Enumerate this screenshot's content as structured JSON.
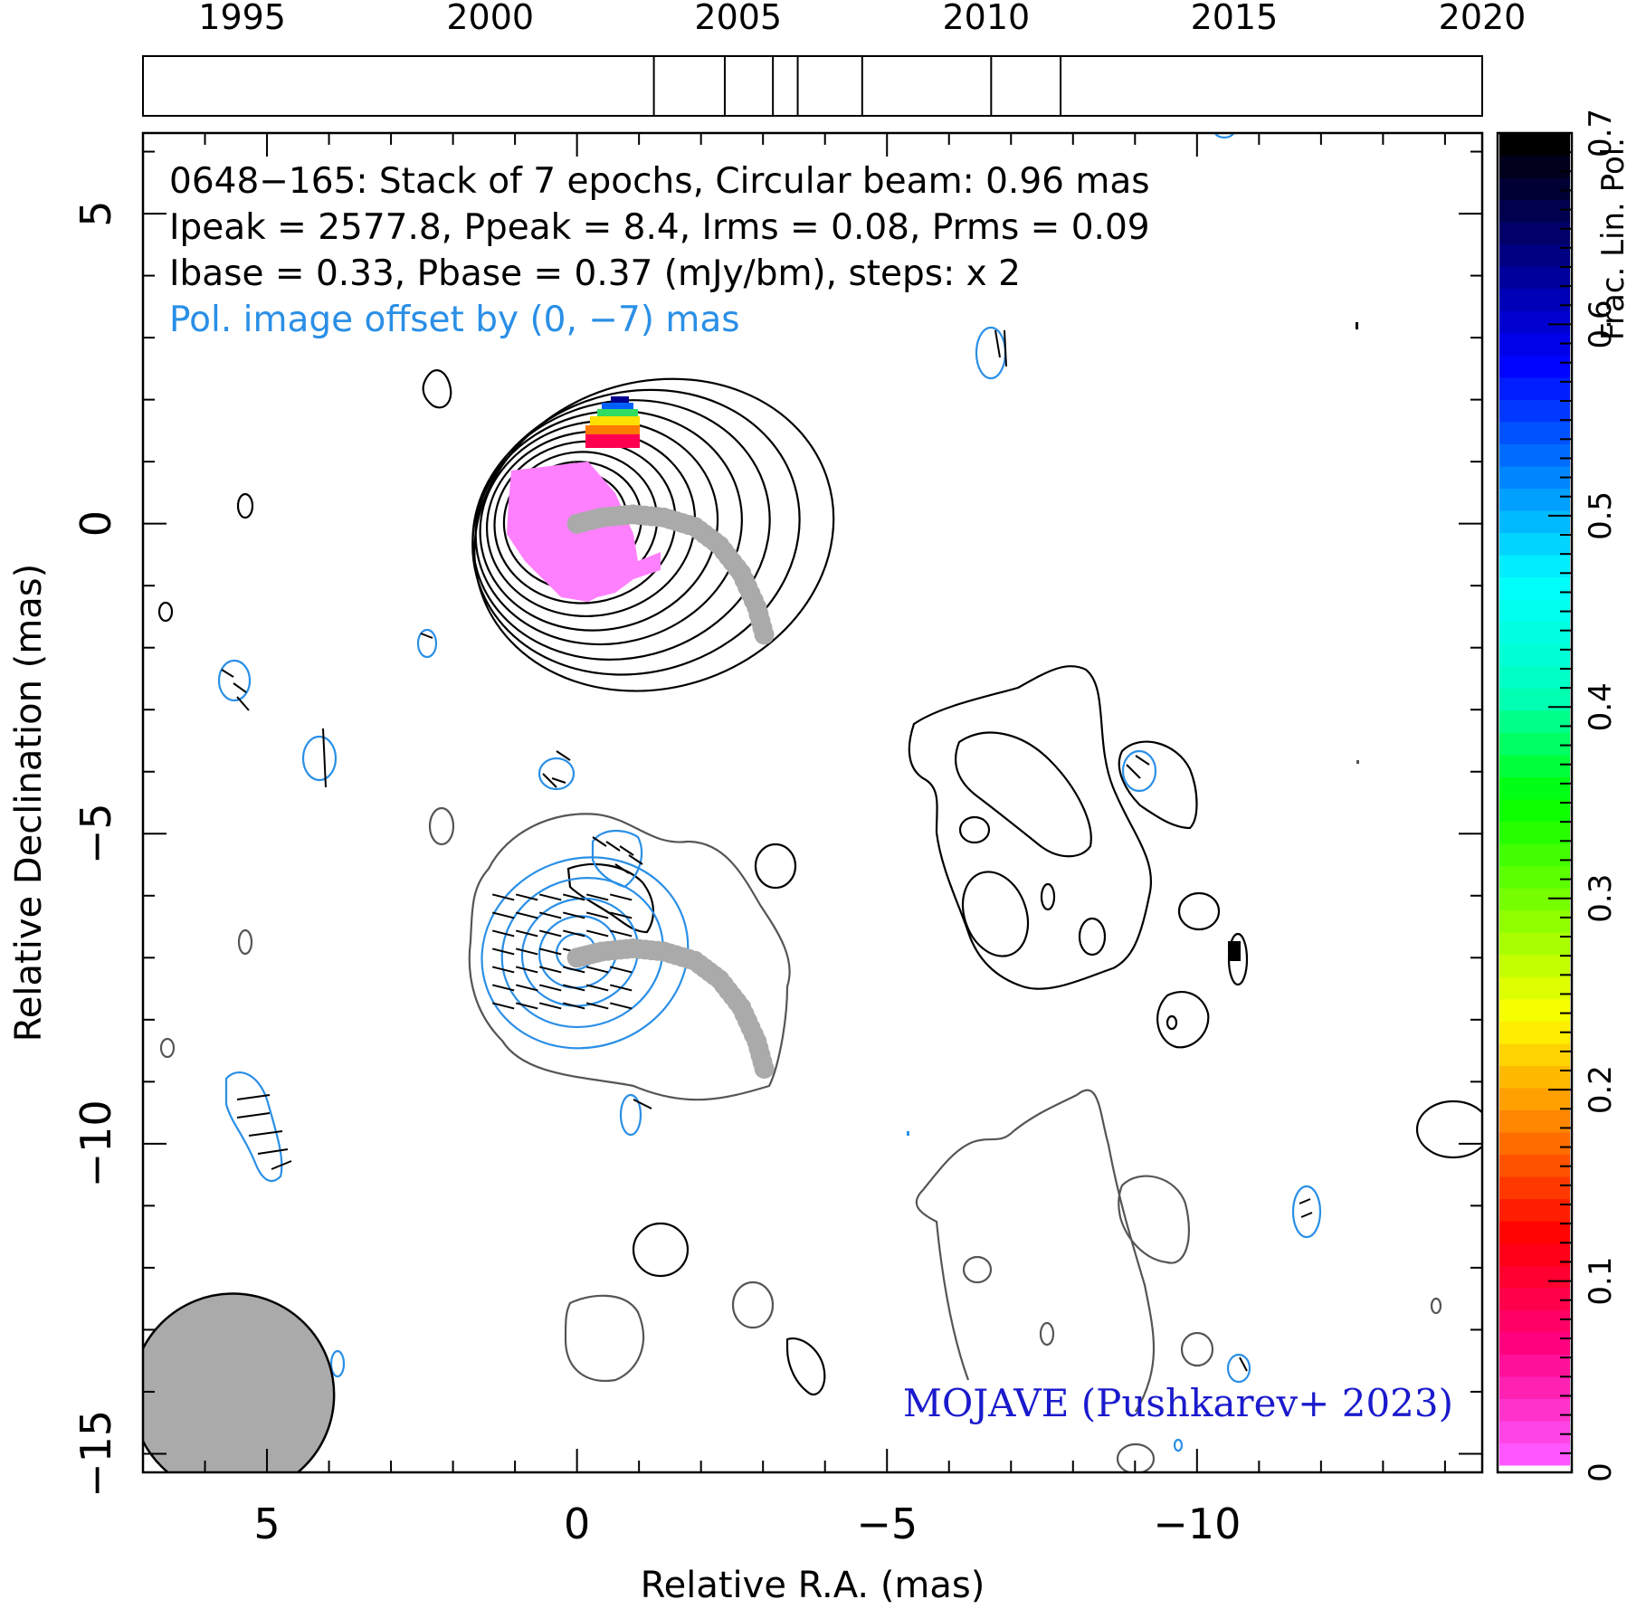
{
  "chart_data": {
    "type": "contour",
    "timeline": {
      "tick_labels": [
        "1995",
        "2000",
        "2005",
        "2010",
        "2015",
        "2020"
      ],
      "range": [
        1993,
        2020
      ],
      "epochs": [
        2003.3,
        2004.73,
        2005.7,
        2006.2,
        2007.5,
        2010.1,
        2011.5
      ]
    },
    "main": {
      "xlabel": "Relative R.A. (mas)",
      "ylabel": "Relative Declination (mas)",
      "xlim": [
        7.0,
        -14.6
      ],
      "ylim": [
        -15.3,
        6.3
      ],
      "x_ticks": [
        5,
        0,
        -5,
        -10
      ],
      "x_tick_labels": [
        "5",
        "0",
        "−5",
        "−10"
      ],
      "y_ticks": [
        5,
        0,
        -5,
        -10,
        -15
      ],
      "y_tick_labels": [
        "5",
        "0",
        "−5",
        "−10",
        "−15"
      ],
      "annotations": [
        "0648−165: Stack of 7 epochs, Circular beam: 0.96 mas",
        "Ipeak = 2577.8, Ppeak = 8.4, Irms = 0.08, Prms = 0.09",
        "Ibase = 0.33, Pbase = 0.37 (mJy/bm), steps: x 2",
        "Pol. image offset by (0, −7) mas"
      ],
      "credit": "MOJAVE (Pushkarev+ 2023)",
      "beam_center": [
        5.55,
        -14.05
      ],
      "beam_diameter_mas": 0.96,
      "ridge_line": {
        "x": [
          0,
          -0.4,
          -0.9,
          -1.4,
          -1.9,
          -2.3,
          -2.65,
          -2.9,
          -3.05
        ],
        "y": [
          0,
          0.1,
          0.15,
          0.1,
          -0.05,
          -0.35,
          -0.8,
          -1.35,
          -1.9
        ]
      },
      "core_contours_mas": [
        0.25,
        0.42,
        0.6,
        0.78,
        0.95,
        1.12,
        1.3,
        1.47,
        1.65,
        1.82,
        2.0,
        2.17,
        2.35
      ],
      "core_center": [
        0.05,
        0.1
      ],
      "pol_core_center": [
        0.05,
        -6.9
      ],
      "pol_contours_mas": [
        0.3,
        0.6,
        0.9,
        1.25,
        1.6
      ]
    },
    "colorbar": {
      "label": "Frac. Lin. Pol.",
      "range": [
        0,
        0.7
      ],
      "ticks": [
        0,
        0.1,
        0.2,
        0.3,
        0.4,
        0.5,
        0.6,
        0.7
      ],
      "tick_labels": [
        "0",
        "0.1",
        "0.2",
        "0.3",
        "0.4",
        "0.5",
        "0.6",
        "0.7"
      ],
      "colors": [
        "#ff55ff",
        "#ff0080",
        "#ff0000",
        "#ff8000",
        "#ffff00",
        "#80ff00",
        "#00ff00",
        "#00ffc0",
        "#00ffff",
        "#0080ff",
        "#0000ff",
        "#000080",
        "#000000"
      ]
    },
    "colors": {
      "total_intensity": "#000000",
      "faint_contour": "#555555",
      "pol_contour": "#2a8fe6",
      "ridge": "#aaaaaa",
      "annotation_blue": "#2a8fe6",
      "credit_blue": "#1a1acc",
      "fracpol_core": "#ff80ff"
    }
  }
}
